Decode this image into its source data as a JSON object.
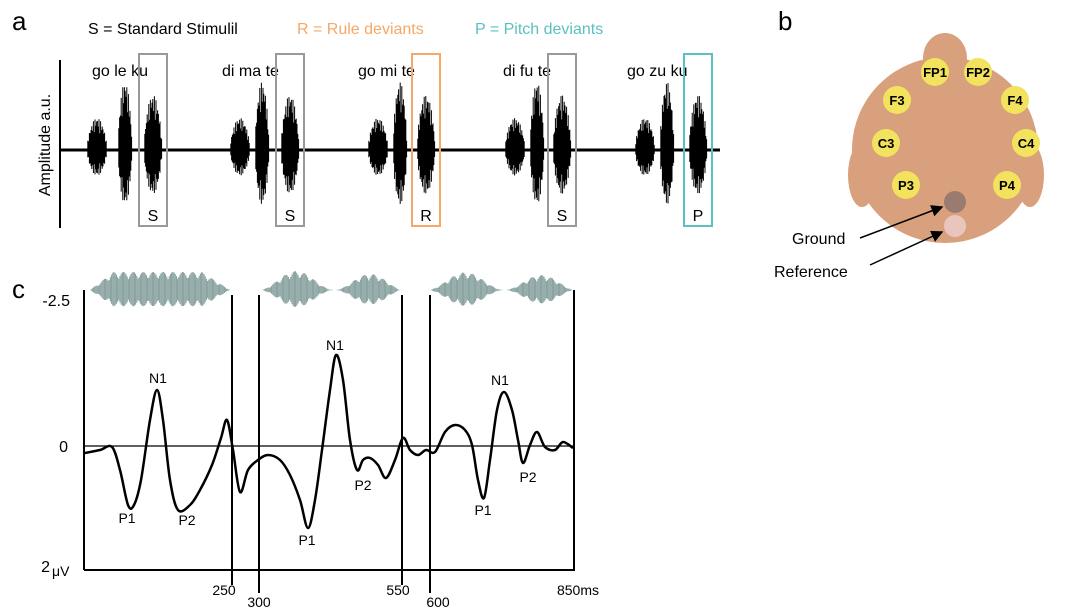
{
  "panel_a": {
    "label": "a",
    "legend": [
      {
        "text": "S = Standard Stimulil"
      },
      {
        "text": "R = Rule deviants"
      },
      {
        "text": "P = Pitch deviants"
      }
    ],
    "y_axis_label": "Amplitude a.u.",
    "trials": [
      {
        "words": "go le ku",
        "type": "S"
      },
      {
        "words": "di ma te",
        "type": "S"
      },
      {
        "words": "go mi te",
        "type": "R"
      },
      {
        "words": "di fu te",
        "type": "S"
      },
      {
        "words": "go zu ku",
        "type": "P"
      }
    ]
  },
  "panel_b": {
    "label": "b",
    "electrodes": [
      "FP1",
      "FP2",
      "F3",
      "F4",
      "C3",
      "C4",
      "P3",
      "P4"
    ],
    "ground": "Ground",
    "reference": "Reference"
  },
  "panel_c": {
    "label": "c",
    "y_labels": [
      "-2.5",
      "0",
      "2"
    ],
    "y_unit": "μV",
    "x_labels": [
      "250",
      "300",
      "550",
      "600",
      "850ms"
    ],
    "peaks": [
      [
        "N1",
        "P1",
        "P2"
      ],
      [
        "N1",
        "P1",
        "P2"
      ],
      [
        "N1",
        "P1",
        "P2"
      ]
    ]
  }
}
